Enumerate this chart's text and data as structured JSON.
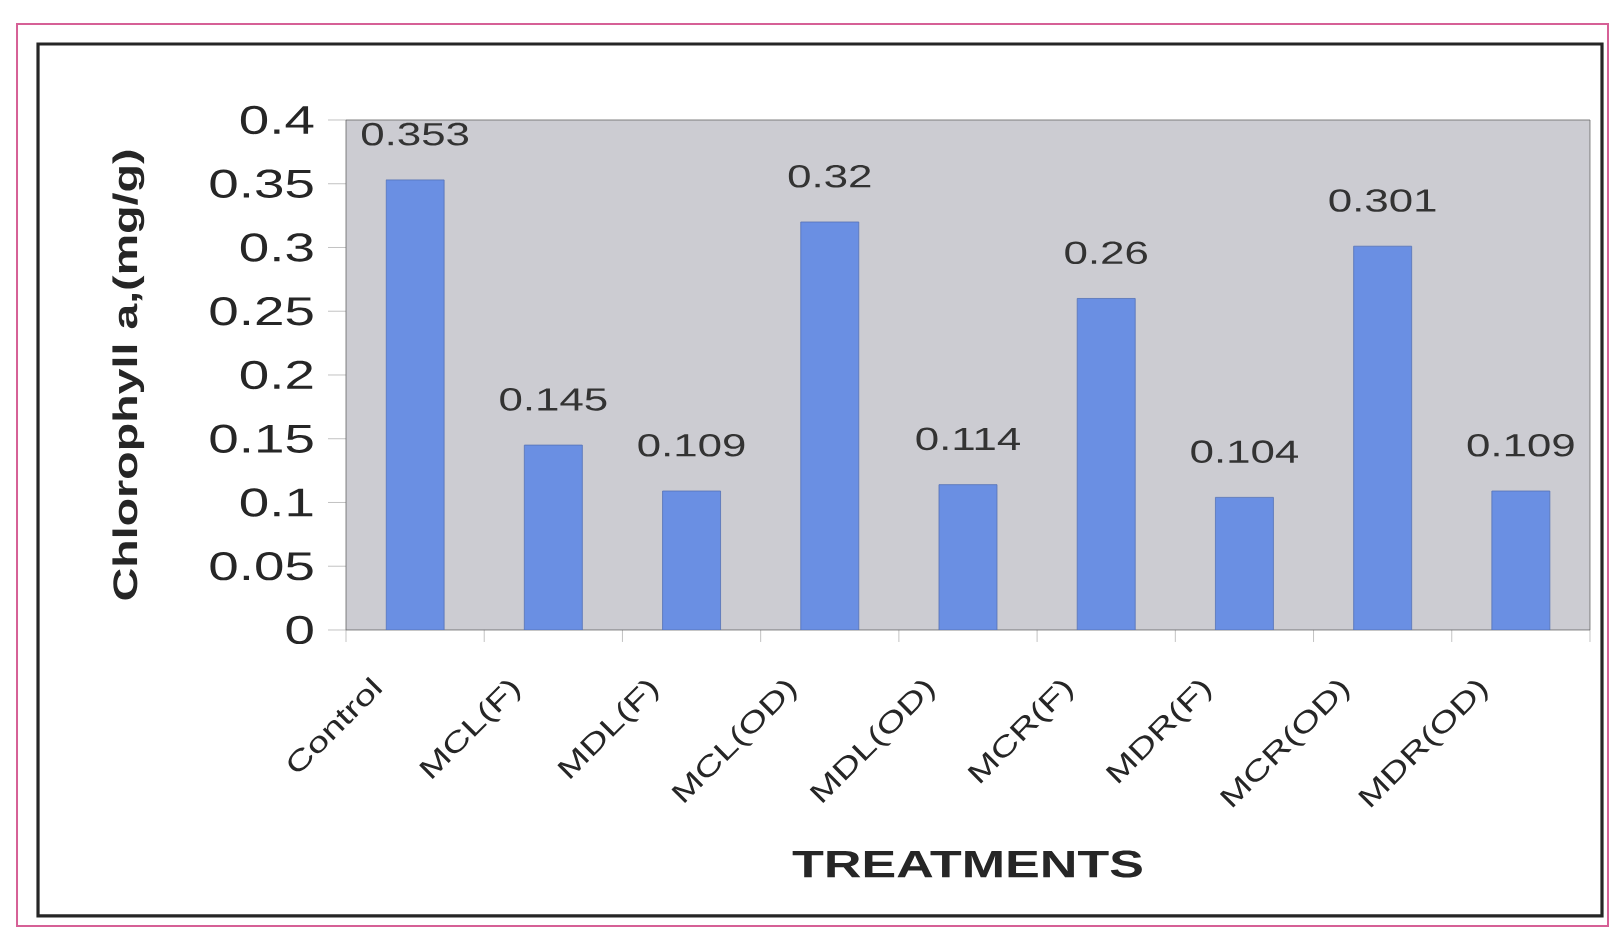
{
  "chart_data": {
    "type": "bar",
    "xlabel": "TREATMENTS",
    "ylabel": "Chlorophyll a,(mg/g)",
    "categories": [
      "Control",
      "MCL(F)",
      "MDL(F)",
      "MCL(OD)",
      "MDL(OD)",
      "MCR(F)",
      "MDR(F)",
      "MCR(OD)",
      "MDR(OD)"
    ],
    "values": [
      0.353,
      0.145,
      0.109,
      0.32,
      0.114,
      0.26,
      0.104,
      0.301,
      0.109
    ],
    "color": "#6a8fe3",
    "ylim": [
      0,
      0.4
    ],
    "yticks": [
      0,
      0.05,
      0.1,
      0.15,
      0.2,
      0.25,
      0.3,
      0.35,
      0.4
    ],
    "data_labels": true
  }
}
